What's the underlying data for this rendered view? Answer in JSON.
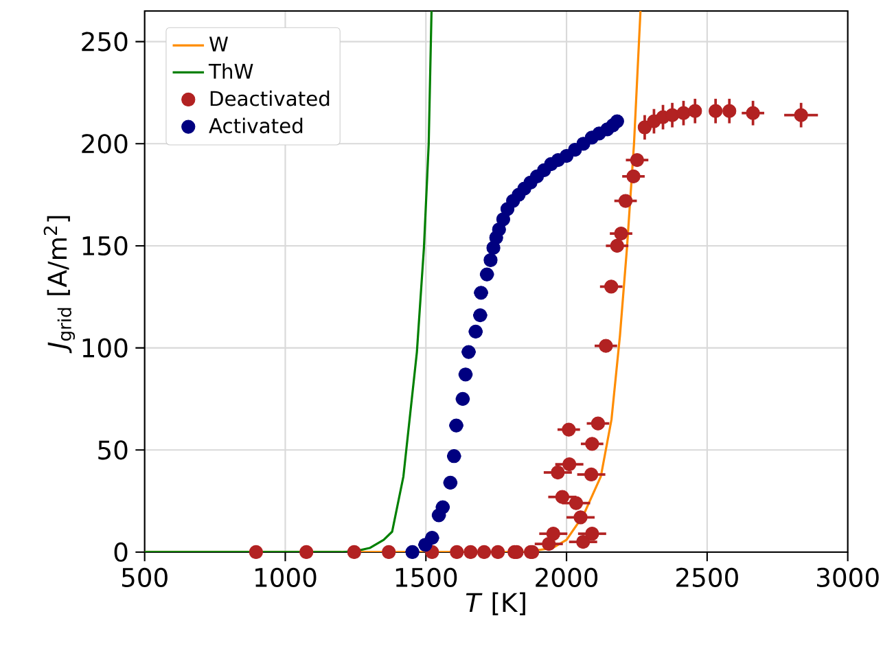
{
  "chart_data": {
    "type": "line",
    "xlabel": "*T* [K]",
    "ylabel": "*J*$_{grid}$ [A/m$^{2}$]",
    "xlim": [
      500,
      3000
    ],
    "ylim": [
      0,
      265
    ],
    "xticks": [
      500,
      1000,
      1500,
      2000,
      2500,
      3000
    ],
    "yticks": [
      0,
      50,
      100,
      150,
      200,
      250
    ],
    "grid": true,
    "legend": "top left",
    "series": [
      {
        "name": "W",
        "color": "#ff8c00",
        "marker": "none",
        "x": [
          500,
          1850,
          1950,
          2000,
          2060,
          2122,
          2160,
          2190,
          2215,
          2240,
          2263
        ],
        "values": [
          0,
          0,
          2,
          6,
          18,
          37,
          65,
          106,
          149,
          200,
          265
        ]
      },
      {
        "name": "ThW",
        "color": "#008000",
        "marker": "none",
        "x": [
          500,
          1200,
          1250,
          1300,
          1350,
          1380,
          1420,
          1468,
          1493,
          1510,
          1520
        ],
        "values": [
          0,
          0,
          0.5,
          2,
          6,
          10,
          37,
          98,
          149,
          200,
          265
        ]
      },
      {
        "name": "Deactivated",
        "type": "scatter",
        "color": "#b22222",
        "marker": "circle",
        "x": [
          896,
          1075,
          1245,
          1368,
          1522,
          1610,
          1659,
          1707,
          1756,
          1815,
          1823,
          1873,
          1878,
          1937,
          1953,
          2059,
          2091,
          2050,
          2034,
          1985,
          2088,
          1969,
          2010,
          2091,
          2008,
          2112,
          2140,
          2159,
          2180,
          2194,
          2210,
          2238,
          2251,
          2278,
          2311,
          2343,
          2376,
          2416,
          2457,
          2530,
          2579,
          2663,
          2834
        ],
        "values": [
          0,
          0,
          0,
          0,
          0,
          0,
          0,
          0,
          0,
          0,
          0,
          0,
          0,
          4,
          9,
          5,
          9,
          17,
          24,
          27,
          38,
          39,
          43,
          53,
          60,
          63,
          101,
          130,
          150,
          156,
          172,
          184,
          192,
          208,
          211,
          213,
          214,
          215,
          216,
          216,
          216,
          215,
          214
        ],
        "xerrors": [
          null,
          null,
          null,
          null,
          null,
          null,
          null,
          null,
          null,
          null,
          null,
          null,
          null,
          50,
          50,
          50,
          50,
          50,
          50,
          50,
          50,
          50,
          50,
          40,
          40,
          40,
          40,
          40,
          40,
          40,
          40,
          40,
          40,
          15,
          15,
          15,
          15,
          15,
          20,
          null,
          null,
          40,
          60
        ],
        "errors": [
          null,
          null,
          null,
          null,
          null,
          null,
          null,
          null,
          null,
          null,
          null,
          null,
          null,
          null,
          null,
          null,
          null,
          null,
          null,
          null,
          null,
          null,
          null,
          null,
          null,
          null,
          null,
          null,
          null,
          null,
          null,
          null,
          null,
          6,
          6,
          6,
          6,
          6,
          6,
          6,
          6,
          6,
          6
        ]
      },
      {
        "name": "Activated",
        "type": "scatter",
        "color": "#000080",
        "marker": "circle",
        "x": [
          1452,
          1498,
          1522,
          1546,
          1560,
          1587,
          1600,
          1608,
          1631,
          1641,
          1652,
          1677,
          1693,
          1696,
          1717,
          1730,
          1740,
          1750,
          1760,
          1775,
          1790,
          1810,
          1830,
          1850,
          1872,
          1895,
          1920,
          1945,
          1970,
          2000,
          2030,
          2060,
          2090,
          2116,
          2145,
          2165,
          2180
        ],
        "values": [
          0,
          3.6,
          7,
          18,
          22,
          34,
          47,
          62,
          75,
          87,
          98,
          108,
          116,
          127,
          136,
          143,
          149,
          154,
          158,
          163,
          168,
          172,
          175,
          178,
          181,
          184,
          187,
          190,
          192,
          194,
          197,
          200,
          203,
          205,
          207,
          209,
          211
        ],
        "xerrors": [
          25,
          25,
          25,
          25,
          25,
          25,
          25,
          25,
          25,
          25,
          25,
          25,
          25,
          25,
          25,
          20,
          20,
          20,
          20,
          20,
          20,
          20,
          20,
          20,
          20,
          20,
          20,
          20,
          20,
          20,
          20,
          20,
          20,
          20,
          20,
          20,
          20
        ]
      }
    ]
  }
}
